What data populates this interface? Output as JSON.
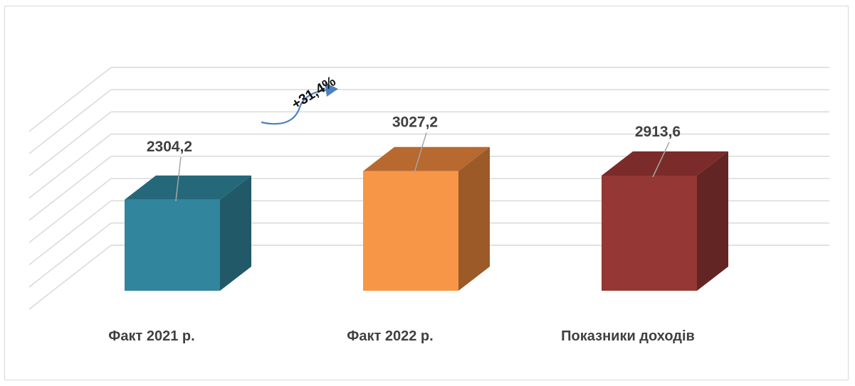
{
  "chart_data": {
    "type": "bar",
    "style": "3d-column",
    "categories": [
      "Факт 2021 р.",
      "Факт 2022 р.",
      "Показники доходів"
    ],
    "values": [
      2304.2,
      3027.2,
      2913.6
    ],
    "value_labels": [
      "2304,2",
      "3027,2",
      "2913,6"
    ],
    "title": "",
    "xlabel": "",
    "ylabel": "",
    "ylim": [
      0,
      4500
    ],
    "grid": true,
    "legend": "none",
    "annotations": [
      {
        "text": "+31,4%",
        "from_category": 0,
        "to_category": 1
      }
    ],
    "colors": [
      {
        "front": "#31859c",
        "side": "#215968",
        "top": "#25687a"
      },
      {
        "front": "#f79646",
        "side": "#9c5a28",
        "top": "#b8692f"
      },
      {
        "front": "#953735",
        "side": "#632523",
        "top": "#7a2b2a"
      }
    ],
    "gridline_color": "#d9d9d9",
    "leader_line_color": "#a6a6a6"
  }
}
